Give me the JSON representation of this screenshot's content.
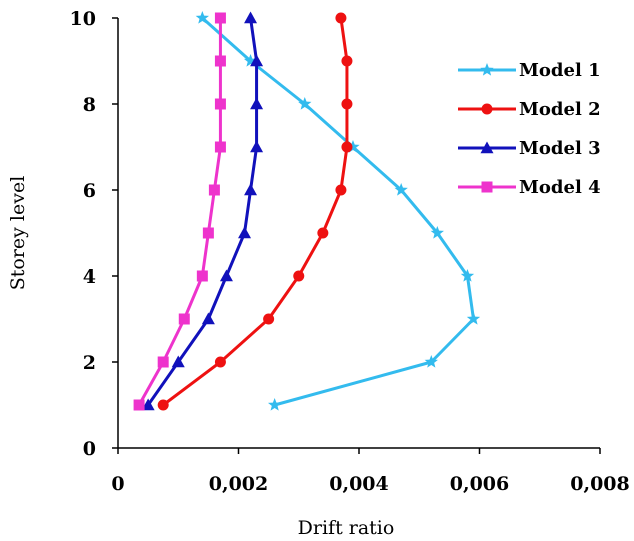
{
  "chart_data": {
    "type": "line",
    "title": "",
    "xlabel": "Drift ratio",
    "ylabel": "Storey level",
    "xlim": [
      0,
      0.008
    ],
    "ylim": [
      0,
      10
    ],
    "x_ticks": [
      0,
      0.002,
      0.004,
      0.006,
      0.008
    ],
    "x_tick_labels": [
      "0",
      "0,002",
      "0,004",
      "0,006",
      "0,008"
    ],
    "y_ticks": [
      0,
      2,
      4,
      6,
      8,
      10
    ],
    "y_tick_labels": [
      "0",
      "2",
      "4",
      "6",
      "8",
      "10"
    ],
    "grid": false,
    "legend_position": "top-right",
    "series": [
      {
        "name": "Model 1",
        "color": "#33bbee",
        "marker": "star",
        "y": [
          1,
          2,
          3,
          4,
          5,
          6,
          7,
          8,
          9,
          10
        ],
        "x": [
          0.0026,
          0.0052,
          0.0059,
          0.0058,
          0.0053,
          0.0047,
          0.0039,
          0.0031,
          0.0022,
          0.0014
        ]
      },
      {
        "name": "Model 2",
        "color": "#ee1111",
        "marker": "circle",
        "y": [
          1,
          2,
          3,
          4,
          5,
          6,
          7,
          8,
          9,
          10
        ],
        "x": [
          0.00075,
          0.0017,
          0.0025,
          0.003,
          0.0034,
          0.0037,
          0.0038,
          0.0038,
          0.0038,
          0.0037
        ]
      },
      {
        "name": "Model 3",
        "color": "#1111bb",
        "marker": "triangle",
        "y": [
          1,
          2,
          3,
          4,
          5,
          6,
          7,
          8,
          9,
          10
        ],
        "x": [
          0.0005,
          0.001,
          0.0015,
          0.0018,
          0.0021,
          0.0022,
          0.0023,
          0.0023,
          0.0023,
          0.0022
        ]
      },
      {
        "name": "Model 4",
        "color": "#ee33cc",
        "marker": "square",
        "y": [
          1,
          2,
          3,
          4,
          5,
          6,
          7,
          8,
          9,
          10
        ],
        "x": [
          0.00035,
          0.00075,
          0.0011,
          0.0014,
          0.0015,
          0.0016,
          0.0017,
          0.0017,
          0.0017,
          0.0017
        ]
      }
    ]
  }
}
